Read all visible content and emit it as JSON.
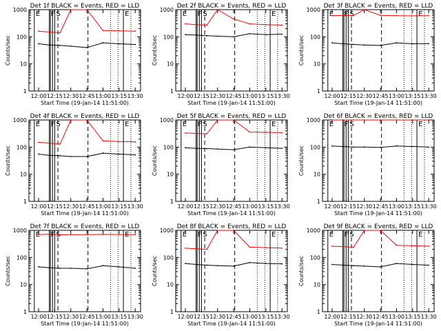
{
  "figure": {
    "shared": {
      "ylabel": "Counts/sec",
      "xlabel": "Start Time (19-Jan-14 11:51:00)",
      "x_ticks": [
        "12:00",
        "12:15",
        "12:30",
        "12:45",
        "13:00",
        "13:15",
        "13:30"
      ],
      "y_ticks": [
        "1",
        "10",
        "100",
        "1000"
      ],
      "markers": [
        "E",
        "F",
        "S",
        "E"
      ]
    },
    "colors": {
      "events": "#000000",
      "lld": "#ff0000"
    },
    "chart_data": [
      {
        "type": "line",
        "title": "Det 1f BLACK = Events, RED = LLD",
        "x": [
          "12:00",
          "12:10",
          "12:20",
          "12:30",
          "12:45",
          "13:00",
          "13:15",
          "13:30"
        ],
        "ylog": true,
        "ylim": [
          1,
          1000
        ],
        "series": [
          {
            "values": [
              55,
              50,
              48,
              45,
              40,
              60,
              55,
              52
            ]
          },
          {
            "values": [
              160,
              150,
              140,
              1000,
              1000,
              170,
              165,
              160
            ]
          }
        ]
      },
      {
        "type": "line",
        "title": "Det 2f BLACK = Events, RED = LLD",
        "x": [
          "12:00",
          "12:10",
          "12:20",
          "12:30",
          "12:45",
          "13:00",
          "13:15",
          "13:30"
        ],
        "ylog": true,
        "ylim": [
          1,
          1000
        ],
        "series": [
          {
            "values": [
              120,
              115,
              110,
              105,
              100,
              130,
              120,
              125
            ]
          },
          {
            "values": [
              300,
              280,
              270,
              1000,
              450,
              300,
              280,
              270
            ]
          }
        ]
      },
      {
        "type": "line",
        "title": "Det 3f BLACK = Events, RED = LLD",
        "x": [
          "12:00",
          "12:10",
          "12:20",
          "12:30",
          "12:45",
          "13:00",
          "13:15",
          "13:30"
        ],
        "ylog": true,
        "ylim": [
          1,
          1000
        ],
        "series": [
          {
            "values": [
              60,
              55,
              52,
              50,
              48,
              60,
              55,
              56
            ]
          },
          {
            "values": [
              600,
              620,
              610,
              1000,
              620,
              600,
              590,
              600
            ]
          }
        ]
      },
      {
        "type": "line",
        "title": "Det 4f BLACK = Events, RED = LLD",
        "x": [
          "12:00",
          "12:10",
          "12:20",
          "12:30",
          "12:45",
          "13:00",
          "13:15",
          "13:30"
        ],
        "ylog": true,
        "ylim": [
          1,
          1000
        ],
        "series": [
          {
            "values": [
              55,
              50,
              48,
              45,
              45,
              60,
              55,
              52
            ]
          },
          {
            "values": [
              150,
              140,
              130,
              1000,
              1000,
              170,
              160,
              155
            ]
          }
        ]
      },
      {
        "type": "line",
        "title": "Det 5f BLACK = Events, RED = LLD",
        "x": [
          "12:00",
          "12:10",
          "12:20",
          "12:30",
          "12:45",
          "13:00",
          "13:15",
          "13:30"
        ],
        "ylog": true,
        "ylim": [
          1,
          1000
        ],
        "series": [
          {
            "values": [
              95,
              90,
              88,
              85,
              80,
              100,
              95,
              90
            ]
          },
          {
            "values": [
              330,
              320,
              310,
              1000,
              1000,
              360,
              350,
              340
            ]
          }
        ]
      },
      {
        "type": "line",
        "title": "Det 6f BLACK = Events, RED = LLD",
        "x": [
          "12:00",
          "12:10",
          "12:20",
          "12:30",
          "12:45",
          "13:00",
          "13:15",
          "13:30"
        ],
        "ylog": true,
        "ylim": [
          1,
          1000
        ],
        "series": [
          {
            "values": [
              110,
              105,
              100,
              100,
              98,
              110,
              105,
              100
            ]
          },
          {
            "values": [
              1000,
              1000,
              1000,
              1000,
              1000,
              1000,
              1000,
              1000
            ]
          }
        ]
      },
      {
        "type": "line",
        "title": "Det 7f BLACK = Events, RED = LLD",
        "x": [
          "12:00",
          "12:10",
          "12:20",
          "12:30",
          "12:45",
          "13:00",
          "13:15",
          "13:30"
        ],
        "ylog": true,
        "ylim": [
          1,
          1000
        ],
        "series": [
          {
            "values": [
              45,
              42,
              40,
              40,
              38,
              50,
              45,
              40
            ]
          },
          {
            "values": [
              700,
              720,
              680,
              700,
              690,
              710,
              700,
              690
            ]
          }
        ]
      },
      {
        "type": "line",
        "title": "Det 8f BLACK = Events, RED = LLD",
        "x": [
          "12:00",
          "12:10",
          "12:20",
          "12:30",
          "12:45",
          "13:00",
          "13:15",
          "13:30"
        ],
        "ylog": true,
        "ylim": [
          1,
          1000
        ],
        "series": [
          {
            "values": [
              60,
              55,
              52,
              50,
              48,
              65,
              60,
              58
            ]
          },
          {
            "values": [
              220,
              210,
              200,
              1000,
              1000,
              240,
              230,
              220
            ]
          }
        ]
      },
      {
        "type": "line",
        "title": "Det 9f BLACK = Events, RED = LLD",
        "x": [
          "12:00",
          "12:10",
          "12:20",
          "12:30",
          "12:45",
          "13:00",
          "13:15",
          "13:30"
        ],
        "ylog": true,
        "ylim": [
          1,
          1000
        ],
        "series": [
          {
            "values": [
              55,
              52,
              50,
              48,
              45,
              60,
              55,
              52
            ]
          },
          {
            "values": [
              260,
              250,
              240,
              1000,
              1000,
              280,
              270,
              260
            ]
          }
        ]
      }
    ]
  }
}
